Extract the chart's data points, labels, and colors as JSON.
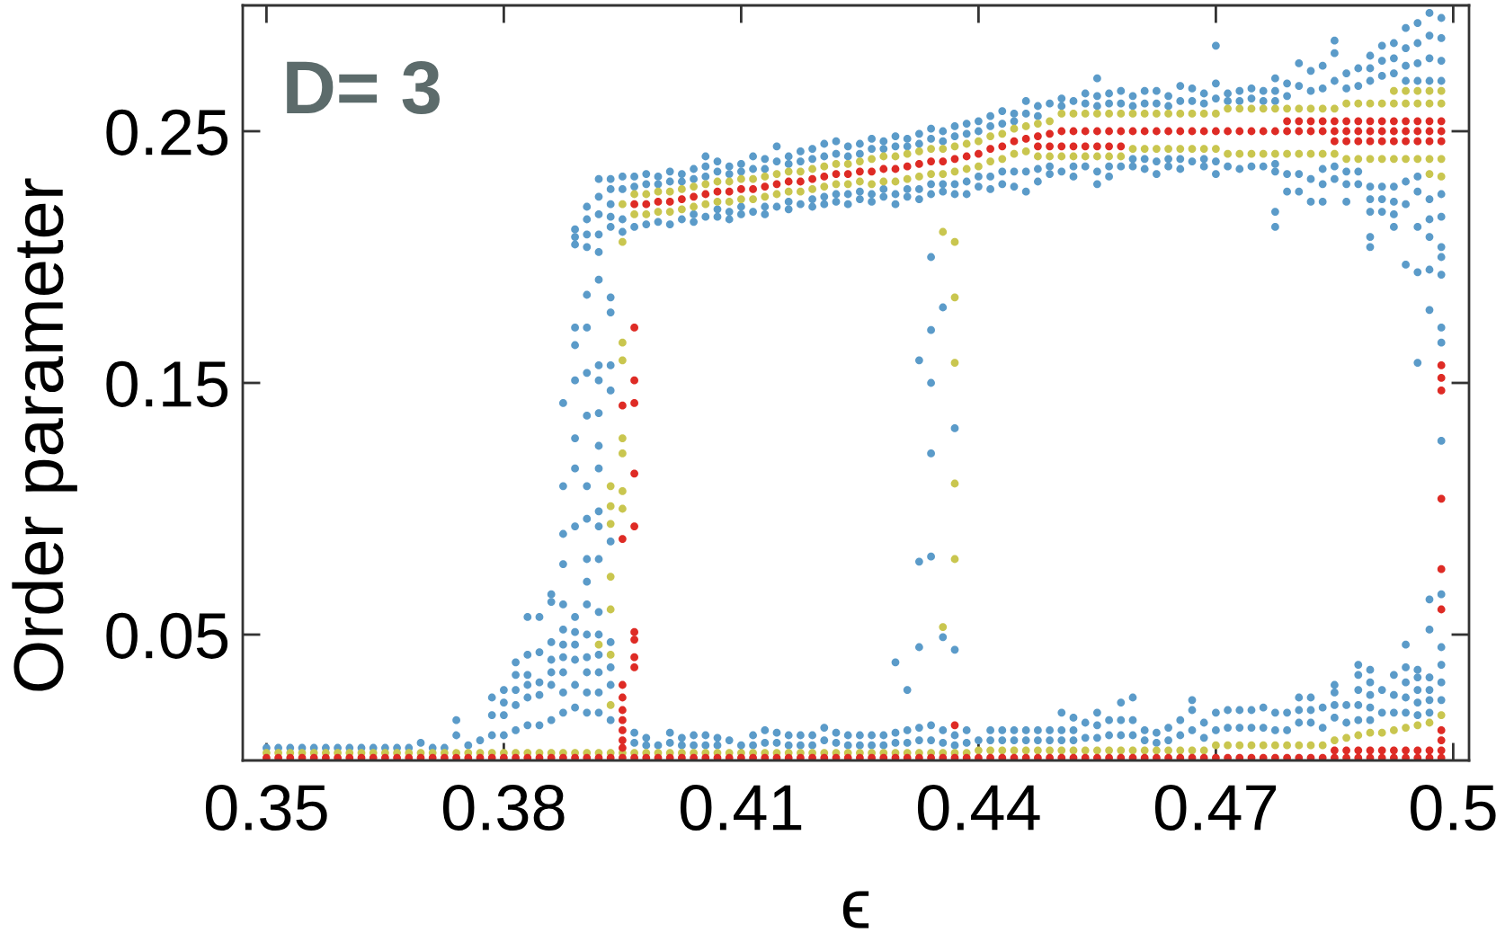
{
  "chart_data": {
    "type": "scatter",
    "xlabel": "ϵ",
    "ylabel": "Order parameter",
    "annotations": [
      "D= 3"
    ],
    "marker": "circle",
    "xlim": [
      0.347,
      0.502
    ],
    "ylim": [
      0,
      0.3
    ],
    "xticks": [
      0.35,
      0.38,
      0.41,
      0.44,
      0.47,
      0.5
    ],
    "yticks": [
      0.05,
      0.15,
      0.25
    ],
    "x": [
      0.35,
      0.3515,
      0.353,
      0.3545,
      0.356,
      0.3575,
      0.359,
      0.3605,
      0.362,
      0.3635,
      0.365,
      0.3665,
      0.368,
      0.3695,
      0.371,
      0.3725,
      0.374,
      0.3755,
      0.377,
      0.3785,
      0.38,
      0.3815,
      0.383,
      0.3845,
      0.386,
      0.3875,
      0.389,
      0.3905,
      0.392,
      0.3935,
      0.395,
      0.3965,
      0.398,
      0.3995,
      0.401,
      0.4025,
      0.404,
      0.4055,
      0.407,
      0.4085,
      0.41,
      0.4115,
      0.413,
      0.4145,
      0.416,
      0.4175,
      0.419,
      0.4205,
      0.422,
      0.4235,
      0.425,
      0.4265,
      0.428,
      0.4295,
      0.431,
      0.4325,
      0.434,
      0.4355,
      0.437,
      0.4385,
      0.44,
      0.4415,
      0.443,
      0.4445,
      0.446,
      0.4475,
      0.449,
      0.4505,
      0.452,
      0.4535,
      0.455,
      0.4565,
      0.458,
      0.4595,
      0.461,
      0.4625,
      0.464,
      0.4655,
      0.467,
      0.4685,
      0.47,
      0.4715,
      0.473,
      0.4745,
      0.476,
      0.4775,
      0.479,
      0.4805,
      0.482,
      0.4835,
      0.485,
      0.4865,
      0.488,
      0.4895,
      0.491,
      0.4925,
      0.494,
      0.4955,
      0.497,
      0.4985
    ],
    "series": [
      {
        "color": "#5b9bc9",
        "values": [
          0.005,
          0.005,
          0.005,
          0.005,
          0.005,
          0.005,
          0.005,
          0.005,
          0.005,
          0.005,
          0.005,
          0.005,
          0.005,
          0.007,
          0.005,
          0.005,
          0.016,
          0.006,
          0.008,
          0.018,
          0.018,
          0.022,
          0.025,
          0.026,
          0.03,
          0.035,
          0.04,
          0.035,
          0.035,
          0.03,
          null,
          0.011,
          0.009,
          0.006,
          0.011,
          0.009,
          0.01,
          0.01,
          0.009,
          0.008,
          0.006,
          0.01,
          0.012,
          0.011,
          0.01,
          0.01,
          0.01,
          0.013,
          0.011,
          0.01,
          0.01,
          0.01,
          0.01,
          0.011,
          0.012,
          0.013,
          0.014,
          0.012,
          0.01,
          0.012,
          0.008,
          0.012,
          0.012,
          0.012,
          0.012,
          0.012,
          0.012,
          0.012,
          0.012,
          0.015,
          0.014,
          0.016,
          0.016,
          0.016,
          0.012,
          0.011,
          0.013,
          0.016,
          0.02,
          0.015,
          0.019,
          0.02,
          0.02,
          0.02,
          0.021,
          0.019,
          0.019,
          0.025,
          0.025,
          0.021,
          0.027,
          0.022,
          0.034,
          0.031,
          0.028,
          0.026,
          0.037,
          0.033,
          0.033,
          0.045
        ]
      },
      {
        "color": "#5b9bc9",
        "values": [
          null,
          null,
          null,
          null,
          null,
          null,
          null,
          null,
          null,
          null,
          null,
          null,
          null,
          null,
          null,
          null,
          0.01,
          null,
          null,
          0.01,
          0.01,
          0.012,
          0.014,
          0.014,
          0.016,
          0.019,
          0.021,
          0.019,
          0.019,
          0.016,
          null,
          0.007,
          0.006,
          null,
          0.007,
          0.006,
          0.006,
          0.006,
          0.006,
          null,
          null,
          0.006,
          0.007,
          0.007,
          0.006,
          0.006,
          0.006,
          0.008,
          0.007,
          0.006,
          0.006,
          0.006,
          0.006,
          0.007,
          0.007,
          0.008,
          0.008,
          0.007,
          0.006,
          0.007,
          null,
          0.008,
          0.008,
          0.008,
          0.008,
          0.008,
          0.008,
          0.008,
          0.008,
          0.009,
          0.009,
          0.01,
          0.01,
          0.01,
          0.008,
          0.007,
          0.008,
          0.01,
          0.012,
          0.009,
          0.012,
          0.013,
          0.013,
          0.013,
          0.013,
          0.012,
          0.012,
          0.015,
          0.015,
          0.013,
          0.017,
          0.015,
          0.022,
          0.021,
          0.019,
          0.019,
          0.025,
          0.023,
          0.024,
          0.031
        ]
      },
      {
        "color": "#5b9bc9",
        "values": [
          null,
          null,
          null,
          null,
          null,
          null,
          null,
          null,
          null,
          null,
          null,
          null,
          null,
          null,
          null,
          null,
          null,
          null,
          null,
          null,
          null,
          null,
          null,
          null,
          null,
          null,
          0.211,
          0.22,
          0.231,
          0.231,
          0.232,
          0.232,
          0.233,
          0.232,
          0.234,
          0.233,
          0.235,
          0.236,
          0.238,
          0.236,
          0.237,
          0.24,
          0.239,
          0.244,
          0.24,
          0.242,
          0.243,
          0.245,
          0.246,
          0.244,
          0.245,
          0.247,
          0.246,
          0.248,
          0.247,
          0.249,
          0.251,
          0.25,
          0.252,
          0.253,
          0.254,
          0.256,
          0.258,
          0.257,
          0.262,
          0.26,
          0.261,
          0.263,
          0.262,
          0.265,
          0.264,
          0.265,
          0.266,
          0.264,
          0.266,
          0.266,
          0.264,
          0.268,
          0.267,
          0.265,
          0.269,
          0.265,
          0.266,
          0.267,
          0.266,
          0.266,
          0.269,
          0.277,
          0.274,
          0.276,
          0.281,
          0.273,
          0.275,
          0.28,
          0.284,
          0.285,
          0.291,
          0.293,
          0.297,
          0.295
        ]
      },
      {
        "color": "#5b9bc9",
        "values": [
          null,
          null,
          null,
          null,
          null,
          null,
          null,
          null,
          null,
          null,
          null,
          null,
          null,
          null,
          null,
          null,
          null,
          null,
          null,
          null,
          null,
          null,
          null,
          null,
          null,
          null,
          0.208,
          0.215,
          0.224,
          0.227,
          0.227,
          0.228,
          0.229,
          0.229,
          0.23,
          0.23,
          0.231,
          0.232,
          0.234,
          0.233,
          0.234,
          0.235,
          0.235,
          0.238,
          0.237,
          0.238,
          0.239,
          0.24,
          0.241,
          0.24,
          0.241,
          0.243,
          0.243,
          0.244,
          0.244,
          0.245,
          0.247,
          0.246,
          0.248,
          0.249,
          0.25,
          0.252,
          0.253,
          0.254,
          0.257,
          0.256,
          null,
          0.26,
          null,
          0.261,
          0.26,
          0.261,
          0.261,
          0.26,
          0.261,
          0.261,
          0.26,
          0.262,
          0.262,
          0.261,
          0.263,
          0.262,
          0.262,
          0.263,
          0.262,
          0.262,
          0.264,
          0.268,
          0.266,
          0.267,
          0.27,
          0.267,
          0.268,
          0.27,
          0.272,
          0.273,
          0.276,
          0.277,
          0.279,
          0.278
        ]
      },
      {
        "color": "#5b9bc9",
        "values": [
          null,
          null,
          null,
          null,
          null,
          null,
          null,
          null,
          null,
          null,
          null,
          null,
          null,
          null,
          null,
          null,
          null,
          null,
          null,
          null,
          null,
          null,
          null,
          null,
          null,
          null,
          null,
          0.209,
          0.209,
          0.216,
          0.215,
          null,
          null,
          null,
          null,
          null,
          0.217,
          null,
          0.219,
          0.218,
          0.22,
          null,
          0.22,
          null,
          0.222,
          null,
          0.223,
          0.224,
          0.225,
          0.225,
          0.226,
          0.225,
          0.227,
          0.225,
          0.227,
          0.227,
          0.229,
          0.229,
          0.229,
          0.23,
          0.232,
          0.232,
          0.234,
          0.234,
          0.234,
          0.235,
          0.236,
          null,
          0.236,
          null,
          0.234,
          0.236,
          null,
          0.239,
          0.239,
          0.238,
          0.239,
          0.239,
          null,
          0.239,
          0.238,
          null,
          null,
          null,
          null,
          0.237,
          0.233,
          0.233,
          0.231,
          0.235,
          0.236,
          0.234,
          0.234,
          0.228,
          0.228,
          0.228,
          0.23,
          0.232,
          0.223,
          0.216
        ]
      },
      {
        "color": "#5b9bc9",
        "values": [
          null,
          null,
          null,
          null,
          null,
          null,
          null,
          null,
          null,
          null,
          null,
          null,
          null,
          null,
          null,
          null,
          null,
          null,
          null,
          null,
          null,
          null,
          null,
          null,
          null,
          null,
          0.205,
          0.204,
          0.202,
          0.212,
          0.21,
          0.212,
          0.213,
          0.214,
          0.213,
          0.215,
          0.214,
          0.216,
          0.216,
          0.215,
          0.217,
          0.218,
          0.217,
          0.22,
          0.219,
          0.221,
          0.22,
          0.221,
          0.222,
          0.221,
          0.223,
          0.222,
          0.224,
          0.221,
          0.224,
          0.223,
          0.225,
          0.226,
          0.225,
          0.225,
          0.228,
          0.227,
          0.229,
          0.228,
          0.226,
          0.23,
          0.233,
          0.234,
          0.232,
          0.236,
          0.229,
          0.232,
          0.236,
          0.236,
          0.235,
          0.233,
          0.236,
          0.235,
          0.238,
          0.236,
          0.233,
          0.236,
          0.235,
          0.236,
          0.236,
          0.234,
          0.226,
          0.226,
          0.222,
          0.229,
          0.231,
          0.229,
          0.229,
          0.218,
          0.218,
          0.217,
          0.221,
          0.226,
          0.208,
          0.193
        ]
      },
      {
        "color": "#5b9bc9",
        "x": [
          0.3785,
          0.38,
          0.38,
          0.3815,
          0.3815,
          0.3815,
          0.383,
          0.383,
          0.383,
          0.383,
          0.3845,
          0.3845,
          0.3845,
          0.386,
          0.386,
          0.386,
          0.386,
          0.386,
          0.3875,
          0.3875,
          0.3875,
          0.3875,
          0.3875,
          0.3875,
          0.3875,
          0.3875,
          0.3875,
          0.389,
          0.389,
          0.389,
          0.389,
          0.389,
          0.389,
          0.389,
          0.389,
          0.389,
          0.389,
          0.3905,
          0.3905,
          0.3905,
          0.3905,
          0.3905,
          0.3905,
          0.3905,
          0.3905,
          0.3905,
          0.3905,
          0.3905,
          0.3905,
          0.392,
          0.392,
          0.392,
          0.392,
          0.392,
          0.392,
          0.392,
          0.392,
          0.392,
          0.392,
          0.392,
          0.392,
          0.392,
          0.392,
          0.3935,
          0.3935,
          0.3935,
          0.3935,
          0.3935,
          0.3935,
          0.3935,
          0.3935,
          0.4055,
          0.4295,
          0.431,
          0.4325,
          0.4325,
          0.4325,
          0.434,
          0.434,
          0.434,
          0.434,
          0.434,
          0.4355,
          0.4355,
          0.437,
          0.437,
          0.4505,
          0.452,
          0.455,
          0.455,
          0.458,
          0.4595,
          0.467,
          0.47,
          0.4775,
          0.4775,
          0.4775,
          0.4805,
          0.482,
          0.4835,
          0.485,
          0.485,
          0.485,
          0.4865,
          0.488,
          0.488,
          0.488,
          0.4895,
          0.4895,
          0.4895,
          0.4895,
          0.4895,
          0.4895,
          0.4895,
          0.491,
          0.491,
          0.4925,
          0.4925,
          0.4925,
          0.4925,
          0.494,
          0.494,
          0.494,
          0.494,
          0.494,
          0.494,
          0.4955,
          0.4955,
          0.4955,
          0.4955,
          0.4955,
          0.4955,
          0.4955,
          0.4955,
          0.497,
          0.497,
          0.497,
          0.497,
          0.497,
          0.497,
          0.497,
          0.497,
          0.497,
          0.4985,
          0.4985,
          0.4985,
          0.4985,
          0.4985,
          0.4985,
          0.4985,
          0.4985,
          0.4985,
          0.4985,
          0.4985
        ],
        "values": [
          0.025,
          0.023,
          0.028,
          0.028,
          0.034,
          0.039,
          0.03,
          0.034,
          0.042,
          0.057,
          0.031,
          0.043,
          0.057,
          0.035,
          0.04,
          0.047,
          0.063,
          0.066,
          0.027,
          0.041,
          0.046,
          0.052,
          0.062,
          0.078,
          0.09,
          0.109,
          0.142,
          0.03,
          0.046,
          0.051,
          0.057,
          0.093,
          0.116,
          0.128,
          0.151,
          0.165,
          0.172,
          0.027,
          0.041,
          0.05,
          0.062,
          0.071,
          0.08,
          0.096,
          0.109,
          0.137,
          0.154,
          0.172,
          0.185,
          0.027,
          0.042,
          0.05,
          0.059,
          0.08,
          0.093,
          0.099,
          0.116,
          0.125,
          0.138,
          0.151,
          0.157,
          0.191,
          0.217,
          0.037,
          0.047,
          0.087,
          0.147,
          0.157,
          0.178,
          0.184,
          0.221,
          0.24,
          0.039,
          0.028,
          0.045,
          0.079,
          0.159,
          0.081,
          0.122,
          0.15,
          0.171,
          0.2,
          0.049,
          0.18,
          0.044,
          0.132,
          0.019,
          0.017,
          0.019,
          0.271,
          0.023,
          0.025,
          0.024,
          0.284,
          0.212,
          0.218,
          0.271,
          0.02,
          0.02,
          0.222,
          0.022,
          0.03,
          0.286,
          0.222,
          0.016,
          0.028,
          0.038,
          0.016,
          0.026,
          0.036,
          0.204,
          0.208,
          0.223,
          0.275,
          0.223,
          0.278,
          0.034,
          0.212,
          0.222,
          0.279,
          0.019,
          0.031,
          0.046,
          0.197,
          0.27,
          0.283,
          0.018,
          0.028,
          0.036,
          0.158,
          0.194,
          0.212,
          0.27,
          0.285,
          0.019,
          0.028,
          0.052,
          0.064,
          0.179,
          0.195,
          0.215,
          0.27,
          0.288,
          0.024,
          0.038,
          0.066,
          0.127,
          0.166,
          0.172,
          0.2,
          0.204,
          0.225,
          0.27,
          0.287
        ]
      },
      {
        "color": "#c9c64f",
        "values": [
          0.003,
          0.003,
          0.003,
          0.003,
          0.003,
          0.003,
          0.003,
          0.003,
          0.003,
          0.003,
          0.003,
          0.003,
          0.003,
          0.003,
          0.003,
          0.003,
          0.003,
          0.003,
          0.003,
          0.003,
          0.003,
          0.003,
          0.003,
          0.003,
          0.003,
          0.003,
          0.003,
          0.003,
          0.003,
          0.003,
          0.003,
          0.003,
          0.003,
          0.003,
          0.003,
          0.003,
          0.003,
          0.003,
          0.003,
          0.003,
          0.003,
          0.003,
          0.003,
          0.003,
          0.003,
          0.003,
          0.003,
          0.003,
          0.003,
          0.003,
          0.003,
          0.003,
          0.003,
          0.003,
          0.003,
          0.003,
          0.003,
          0.003,
          0.003,
          0.003,
          0.004,
          0.004,
          0.004,
          0.004,
          0.004,
          0.004,
          0.004,
          0.004,
          0.004,
          0.004,
          0.004,
          0.004,
          0.004,
          0.004,
          0.004,
          0.004,
          0.004,
          0.004,
          0.004,
          0.004,
          0.006,
          0.006,
          0.006,
          0.006,
          0.006,
          0.006,
          0.006,
          0.006,
          0.006,
          0.006,
          0.008,
          0.009,
          0.01,
          0.011,
          0.011,
          0.012,
          0.013,
          0.014,
          0.015,
          0.018
        ]
      },
      {
        "color": "#c9c64f",
        "values": [
          null,
          null,
          null,
          null,
          null,
          null,
          null,
          null,
          null,
          null,
          null,
          null,
          null,
          null,
          null,
          null,
          null,
          null,
          null,
          null,
          null,
          null,
          null,
          null,
          null,
          null,
          null,
          null,
          null,
          null,
          0.221,
          0.225,
          0.225,
          0.226,
          0.226,
          0.227,
          0.228,
          0.229,
          0.23,
          0.23,
          0.231,
          0.231,
          0.232,
          0.233,
          0.234,
          0.234,
          0.235,
          0.236,
          0.237,
          0.237,
          0.238,
          0.239,
          0.24,
          0.24,
          0.241,
          0.242,
          0.243,
          0.243,
          0.244,
          0.245,
          0.246,
          0.248,
          0.249,
          0.251,
          0.252,
          0.253,
          0.254,
          0.257,
          0.257,
          0.257,
          0.257,
          0.257,
          0.257,
          0.257,
          0.257,
          0.257,
          0.257,
          0.257,
          0.257,
          0.257,
          0.257,
          0.259,
          0.259,
          0.259,
          0.259,
          0.259,
          0.259,
          0.259,
          0.259,
          0.259,
          0.259,
          0.261,
          0.261,
          0.261,
          0.261,
          0.261,
          0.261,
          0.261,
          0.261,
          0.261
        ]
      },
      {
        "color": "#c9c64f",
        "values": [
          null,
          null,
          null,
          null,
          null,
          null,
          null,
          null,
          null,
          null,
          null,
          null,
          null,
          null,
          null,
          null,
          null,
          null,
          null,
          null,
          null,
          null,
          null,
          null,
          null,
          null,
          null,
          null,
          null,
          null,
          null,
          0.217,
          0.217,
          0.218,
          0.218,
          0.219,
          0.22,
          0.221,
          0.222,
          0.222,
          0.223,
          0.223,
          0.224,
          0.225,
          0.226,
          0.226,
          0.227,
          0.228,
          0.229,
          0.229,
          0.23,
          0.229,
          0.23,
          0.23,
          0.231,
          0.232,
          0.233,
          0.233,
          0.234,
          0.235,
          0.236,
          0.238,
          0.239,
          0.241,
          0.242,
          0.24,
          0.24,
          0.24,
          0.24,
          0.24,
          0.24,
          0.24,
          0.24,
          0.243,
          0.243,
          0.243,
          0.243,
          0.243,
          0.243,
          0.243,
          0.243,
          0.241,
          0.241,
          0.241,
          0.241,
          0.241,
          0.241,
          0.241,
          0.241,
          0.241,
          0.241,
          0.239,
          0.239,
          0.239,
          0.239,
          0.239,
          0.239,
          0.239,
          0.239,
          0.239
        ]
      },
      {
        "color": "#c9c64f",
        "x": [
          0.392,
          0.3935,
          0.3935,
          0.3935,
          0.3935,
          0.3935,
          0.3935,
          0.3935,
          0.395,
          0.395,
          0.395,
          0.395,
          0.395,
          0.395,
          0.395,
          0.4355,
          0.4355,
          0.437,
          0.437,
          0.437,
          0.437,
          0.437,
          0.4925,
          0.494,
          0.4955,
          0.497,
          0.4985,
          0.497,
          0.4985
        ],
        "values": [
          0.046,
          0.022,
          0.042,
          0.06,
          0.073,
          0.094,
          0.101,
          0.109,
          0.1,
          0.107,
          0.122,
          0.128,
          0.159,
          0.166,
          0.206,
          0.053,
          0.21,
          0.08,
          0.11,
          0.158,
          0.184,
          0.206,
          0.266,
          0.266,
          0.266,
          0.266,
          0.266,
          0.233,
          0.232
        ]
      },
      {
        "color": "#de2b25",
        "values": [
          0.001,
          0.001,
          0.001,
          0.001,
          0.001,
          0.001,
          0.001,
          0.001,
          0.001,
          0.001,
          0.001,
          0.001,
          0.001,
          0.001,
          0.001,
          0.001,
          0.001,
          0.001,
          0.001,
          0.001,
          0.001,
          0.001,
          0.001,
          0.001,
          0.001,
          0.001,
          0.001,
          0.001,
          0.001,
          0.001,
          0.001,
          0.001,
          0.001,
          0.001,
          0.001,
          0.001,
          0.001,
          0.001,
          0.001,
          0.001,
          0.001,
          0.001,
          0.001,
          0.001,
          0.001,
          0.001,
          0.001,
          0.001,
          0.001,
          0.001,
          0.001,
          0.001,
          0.001,
          0.001,
          0.001,
          0.001,
          0.001,
          0.001,
          0.001,
          0.001,
          0.001,
          0.001,
          0.001,
          0.001,
          0.001,
          0.001,
          0.001,
          0.001,
          0.001,
          0.001,
          0.001,
          0.001,
          0.001,
          0.001,
          0.001,
          0.001,
          0.001,
          0.001,
          0.001,
          0.001,
          0.001,
          0.001,
          0.001,
          0.001,
          0.001,
          0.001,
          0.001,
          0.001,
          0.001,
          0.001,
          0.001,
          0.001,
          0.001,
          0.001,
          0.001,
          0.001,
          0.001,
          0.001,
          0.001,
          0.001
        ]
      },
      {
        "color": "#de2b25",
        "values": [
          null,
          null,
          null,
          null,
          null,
          null,
          null,
          null,
          null,
          null,
          null,
          null,
          null,
          null,
          null,
          null,
          null,
          null,
          null,
          null,
          null,
          null,
          null,
          null,
          null,
          null,
          null,
          null,
          null,
          null,
          null,
          0.221,
          0.221,
          0.222,
          0.222,
          0.223,
          0.224,
          0.225,
          0.226,
          0.226,
          0.227,
          0.227,
          0.228,
          0.229,
          0.23,
          0.23,
          0.231,
          0.232,
          0.233,
          0.233,
          0.234,
          0.234,
          0.235,
          0.235,
          0.236,
          0.237,
          0.238,
          0.238,
          0.239,
          0.24,
          0.241,
          0.243,
          0.244,
          0.246,
          0.247,
          0.248,
          0.249,
          0.25,
          0.25,
          0.25,
          0.25,
          0.25,
          0.25,
          0.25,
          0.25,
          0.25,
          0.25,
          0.25,
          0.25,
          0.25,
          0.25,
          0.25,
          0.25,
          0.25,
          0.25,
          0.25,
          0.25,
          0.25,
          0.25,
          0.25,
          0.25,
          0.25,
          0.25,
          0.25,
          0.25,
          0.25,
          0.25,
          0.25,
          0.25,
          0.25
        ]
      },
      {
        "color": "#de2b25",
        "values": [
          null,
          null,
          null,
          null,
          null,
          null,
          null,
          null,
          null,
          null,
          null,
          null,
          null,
          null,
          null,
          null,
          null,
          null,
          null,
          null,
          null,
          null,
          null,
          null,
          null,
          null,
          null,
          null,
          null,
          null,
          null,
          null,
          null,
          null,
          null,
          null,
          null,
          null,
          null,
          null,
          null,
          null,
          null,
          null,
          null,
          null,
          null,
          null,
          null,
          null,
          null,
          null,
          null,
          null,
          null,
          null,
          null,
          null,
          null,
          null,
          null,
          null,
          null,
          null,
          null,
          0.244,
          0.244,
          0.244,
          0.244,
          0.244,
          0.244,
          0.244,
          0.244,
          null,
          null,
          null,
          null,
          null,
          null,
          null,
          null,
          null,
          null,
          null,
          null,
          null,
          0.254,
          0.254,
          0.254,
          0.254,
          0.254,
          0.254,
          0.254,
          0.254,
          0.254,
          0.254,
          0.254,
          0.254,
          0.254,
          0.254
        ]
      },
      {
        "color": "#de2b25",
        "x": [
          0.395,
          0.395,
          0.395,
          0.395,
          0.395,
          0.395,
          0.395,
          0.395,
          0.395,
          0.3965,
          0.3965,
          0.3965,
          0.3965,
          0.3965,
          0.3965,
          0.3965,
          0.3965,
          0.3965,
          0.437,
          0.485,
          0.4865,
          0.488,
          0.4895,
          0.491,
          0.4925,
          0.494,
          0.4955,
          0.497,
          0.4985,
          0.485,
          0.4865,
          0.488,
          0.4895,
          0.491,
          0.4925,
          0.494,
          0.4955,
          0.497,
          0.4985,
          0.4985,
          0.4985,
          0.4985,
          0.4985,
          0.4985,
          0.4985,
          0.4985,
          0.4985
        ],
        "values": [
          0.005,
          0.008,
          0.012,
          0.016,
          0.02,
          0.025,
          0.03,
          0.088,
          0.141,
          0.037,
          0.041,
          0.048,
          0.051,
          0.093,
          0.114,
          0.142,
          0.151,
          0.172,
          0.014,
          0.004,
          0.004,
          0.004,
          0.004,
          0.004,
          0.004,
          0.004,
          0.004,
          0.004,
          0.004,
          0.246,
          0.246,
          0.246,
          0.246,
          0.246,
          0.246,
          0.246,
          0.246,
          0.246,
          0.246,
          0.008,
          0.012,
          0.06,
          0.076,
          0.104,
          0.147,
          0.152,
          0.157
        ]
      }
    ]
  }
}
